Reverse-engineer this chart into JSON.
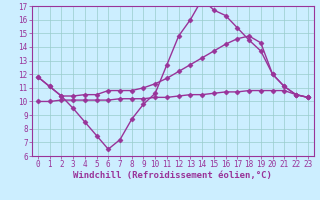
{
  "x": [
    0,
    1,
    2,
    3,
    4,
    5,
    6,
    7,
    8,
    9,
    10,
    11,
    12,
    13,
    14,
    15,
    16,
    17,
    18,
    19,
    20,
    21,
    22,
    23
  ],
  "line1": [
    11.8,
    11.1,
    10.4,
    9.5,
    8.5,
    7.5,
    6.5,
    7.2,
    8.7,
    9.8,
    10.6,
    12.7,
    14.8,
    16.0,
    17.5,
    16.7,
    16.3,
    15.4,
    14.5,
    13.7,
    12.0,
    11.1,
    10.5,
    10.3
  ],
  "line2": [
    11.8,
    11.1,
    10.4,
    10.4,
    10.5,
    10.5,
    10.8,
    10.8,
    10.8,
    11.0,
    11.3,
    11.7,
    12.2,
    12.7,
    13.2,
    13.7,
    14.2,
    14.6,
    14.8,
    14.3,
    12.0,
    11.1,
    10.5,
    10.3
  ],
  "line3": [
    10.0,
    10.0,
    10.1,
    10.1,
    10.1,
    10.1,
    10.1,
    10.2,
    10.2,
    10.2,
    10.3,
    10.3,
    10.4,
    10.5,
    10.5,
    10.6,
    10.7,
    10.7,
    10.8,
    10.8,
    10.8,
    10.8,
    10.5,
    10.3
  ],
  "color": "#993399",
  "bg_color": "#cceeff",
  "grid_color": "#99cccc",
  "xlabel": "Windchill (Refroidissement éolien,°C)",
  "xlim": [
    -0.5,
    23.5
  ],
  "ylim": [
    6,
    17
  ],
  "yticks": [
    6,
    7,
    8,
    9,
    10,
    11,
    12,
    13,
    14,
    15,
    16,
    17
  ],
  "xticks": [
    0,
    1,
    2,
    3,
    4,
    5,
    6,
    7,
    8,
    9,
    10,
    11,
    12,
    13,
    14,
    15,
    16,
    17,
    18,
    19,
    20,
    21,
    22,
    23
  ],
  "marker": "D",
  "markersize": 2.5,
  "linewidth": 1.0,
  "tick_fontsize": 5.5,
  "xlabel_fontsize": 6.5
}
